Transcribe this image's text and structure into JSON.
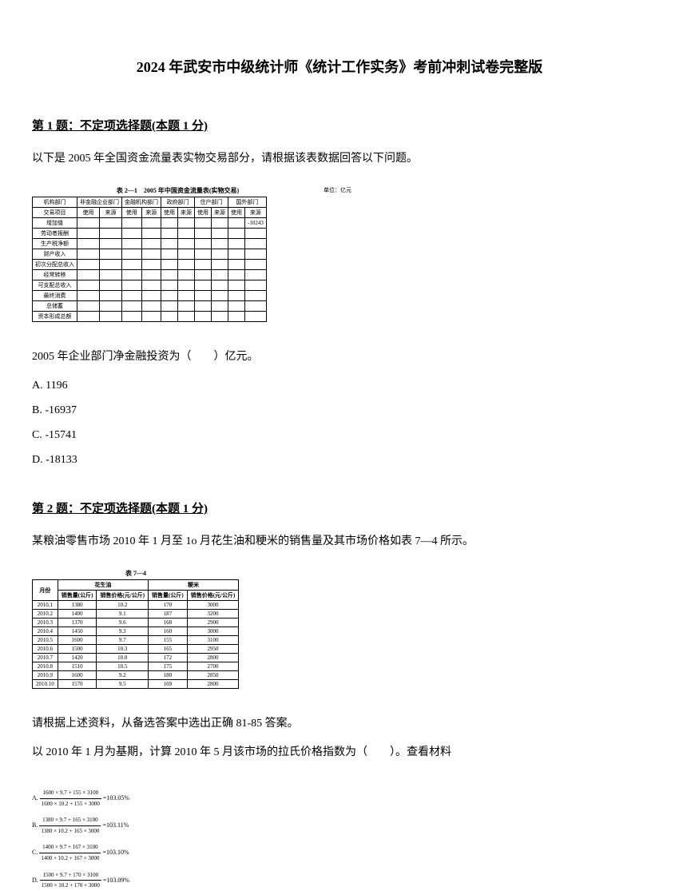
{
  "title": "2024 年武安市中级统计师《统计工作实务》考前冲刺试卷完整版",
  "q1": {
    "header": "第 1 题：不定项选择题(本题 1 分)",
    "intro": "以下是 2005 年全国资金流量表实物交易部分，请根据该表数据回答以下问题。",
    "table_caption": "表 2—1　2005 年中国资金流量表(实物交易)",
    "table_unit": "单位：亿元",
    "headers_top": [
      "机构部门",
      "非金融企业部门",
      "金融机构部门",
      "政府部门",
      "住户部门",
      "国外部门"
    ],
    "headers_sub": [
      "交易项目",
      "使用",
      "来源",
      "使用",
      "来源",
      "使用",
      "来源",
      "使用",
      "来源",
      "使用",
      "来源"
    ],
    "rows": [
      [
        "增加值",
        "",
        "",
        "",
        "",
        "",
        "",
        "",
        "",
        "",
        "-10243"
      ],
      [
        "劳动者报酬",
        "",
        "",
        "",
        "",
        "",
        "",
        "",
        "",
        "",
        ""
      ],
      [
        "生产税净额",
        "",
        "",
        "",
        "",
        "",
        "",
        "",
        "",
        "",
        ""
      ],
      [
        "财产收入",
        "",
        "",
        "",
        "",
        "",
        "",
        "",
        "",
        "",
        ""
      ],
      [
        "初次分配总收入",
        "",
        "",
        "",
        "",
        "",
        "",
        "",
        "",
        "",
        ""
      ],
      [
        "经常转移",
        "",
        "",
        "",
        "",
        "",
        "",
        "",
        "",
        "",
        ""
      ],
      [
        "可支配总收入",
        "",
        "",
        "",
        "",
        "",
        "",
        "",
        "",
        "",
        ""
      ],
      [
        "最终消费",
        "",
        "",
        "",
        "",
        "",
        "",
        "",
        "",
        "",
        ""
      ],
      [
        "总储蓄",
        "",
        "",
        "",
        "",
        "",
        "",
        "",
        "",
        "",
        ""
      ],
      [
        "资本形成总额",
        "",
        "",
        "",
        "",
        "",
        "",
        "",
        "",
        "",
        ""
      ]
    ],
    "stem": "2005 年企业部门净金融投资为（　　）亿元。",
    "options": [
      "A. 1196",
      "B. -16937",
      "C. -15741",
      "D. -18133"
    ]
  },
  "q2": {
    "header": "第 2 题：不定项选择题(本题 1 分)",
    "intro": "某粮油零售市场 2010 年 1 月至 1o 月花生油和粳米的销售量及其市场价格如表 7—4 所示。",
    "table_caption": "表 7—4",
    "headers1": [
      "月份",
      "花生油",
      "粳米"
    ],
    "headers2": [
      "",
      "销售量(公斤)",
      "销售价格(元/公斤)",
      "销售量(公斤)",
      "销售价格(元/公斤)"
    ],
    "rows": [
      [
        "2010.1",
        "1380",
        "10.2",
        "170",
        "3000"
      ],
      [
        "2010.2",
        "1400",
        "9.1",
        "187",
        "3200"
      ],
      [
        "2010.3",
        "1370",
        "9.6",
        "168",
        "2900"
      ],
      [
        "2010.4",
        "1450",
        "9.3",
        "160",
        "3000"
      ],
      [
        "2010.5",
        "1600",
        "9.7",
        "155",
        "3100"
      ],
      [
        "2010.6",
        "1500",
        "10.3",
        "165",
        "2950"
      ],
      [
        "2010.7",
        "1420",
        "10.0",
        "172",
        "2800"
      ],
      [
        "2010.8",
        "1510",
        "10.5",
        "175",
        "2700"
      ],
      [
        "2010.9",
        "1600",
        "9.2",
        "180",
        "2850"
      ],
      [
        "2010.10",
        "1570",
        "9.5",
        "169",
        "2800"
      ]
    ],
    "stem1": "请根据上述资料，从备选答案中选出正确 81-85 答案。",
    "stem2": "以 2010 年 1 月为基期，计算 2010 年 5 月该市场的拉氏价格指数为（　　）。查看材料",
    "formulas": [
      {
        "label": "A.",
        "num": "1600 × 9.7 + 155 × 3100",
        "den": "1600 × 10.2 + 155 × 3000",
        "result": "=103.05%"
      },
      {
        "label": "B.",
        "num": "1380 × 9.7 + 165 × 3100",
        "den": "1380 × 10.2 + 165 × 3000",
        "result": "=103.11%"
      },
      {
        "label": "C.",
        "num": "1400 × 9.7 + 167 × 3100",
        "den": "1400 × 10.2 + 167 × 3000",
        "result": "=103.10%"
      },
      {
        "label": "D.",
        "num": "1500 × 9.7 + 170 × 3100",
        "den": "1500 × 10.2 + 170 × 3000",
        "result": "=103.09%"
      }
    ]
  }
}
